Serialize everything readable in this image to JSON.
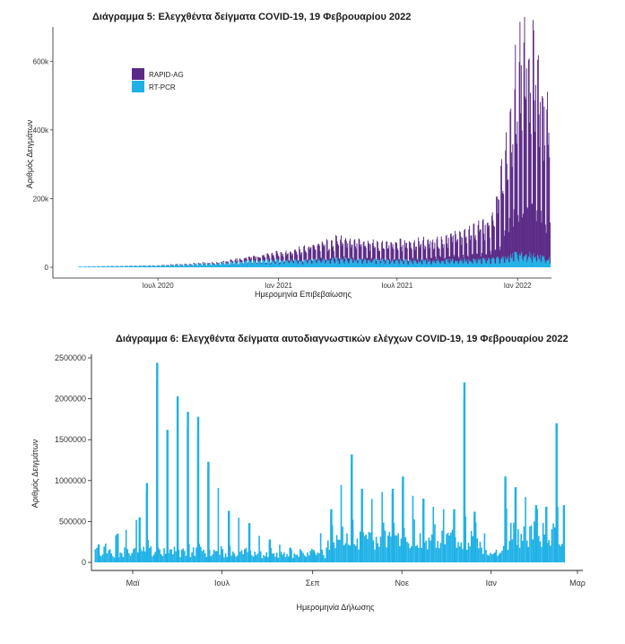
{
  "charts": [
    {
      "title": "Διάγραμμα 5: Ελεγχθέντα δείγματα COVID-19, 19 Φεβρουαρίου 2022",
      "xlabel": "Ημερομηνία Επιβεβαίωσης",
      "ylabel": "Αριθμός Δειγμάτων",
      "ytick_labels": [
        "0",
        "200k",
        "400k",
        "600k"
      ],
      "xtick_labels": [
        "Ιουλ 2020",
        "Ιαν 2021",
        "Ιουλ 2021",
        "Ιαν 2022"
      ],
      "legend": [
        "RAPID-AG",
        "RT-PCR"
      ],
      "colors": {
        "rapid": "#5b2a86",
        "pcr": "#1fb1e6"
      }
    },
    {
      "title": "Διάγραμμα 6: Ελεγχθέντα δείγματα αυτοδιαγνωστικών ελέγχων COVID-19, 19 Φεβρουαρίου 2022",
      "xlabel": "Ημερομηνία Δήλωσης",
      "ylabel": "Αριθμός Δειγμάτων",
      "ytick_labels": [
        "0",
        "500000",
        "1000000",
        "1500000",
        "2000000",
        "2500000"
      ],
      "xtick_labels": [
        "Μαϊ",
        "Ιουλ",
        "Σεπ",
        "Νοε",
        "Ιαν",
        "Μαρ"
      ],
      "colors": {
        "self": "#1fb1e6"
      }
    }
  ],
  "chart_data": [
    {
      "type": "bar",
      "stacked": true,
      "x_range": [
        "2020-03-01",
        "2022-02-19"
      ],
      "ylim": [
        0,
        700000
      ],
      "legend_position": "top-left",
      "grid": false,
      "weekly_profile": [
        {
          "date": "2020-03-01",
          "pcr": 2000,
          "rapid": 0
        },
        {
          "date": "2020-07-01",
          "pcr": 5000,
          "rapid": 1000
        },
        {
          "date": "2020-10-01",
          "pcr": 12000,
          "rapid": 3000
        },
        {
          "date": "2020-12-01",
          "pcr": 20000,
          "rapid": 12000
        },
        {
          "date": "2021-01-15",
          "pcr": 22000,
          "rapid": 25000
        },
        {
          "date": "2021-04-01",
          "pcr": 25000,
          "rapid": 55000
        },
        {
          "date": "2021-06-15",
          "pcr": 22000,
          "rapid": 45000
        },
        {
          "date": "2021-08-15",
          "pcr": 20000,
          "rapid": 55000
        },
        {
          "date": "2021-10-15",
          "pcr": 22000,
          "rapid": 80000
        },
        {
          "date": "2021-11-25",
          "pcr": 25000,
          "rapid": 110000
        },
        {
          "date": "2021-12-15",
          "pcr": 30000,
          "rapid": 330000
        },
        {
          "date": "2022-01-05",
          "pcr": 45000,
          "rapid": 580000
        },
        {
          "date": "2022-01-25",
          "pcr": 35000,
          "rapid": 550000
        },
        {
          "date": "2022-02-19",
          "pcr": 25000,
          "rapid": 380000
        }
      ]
    },
    {
      "type": "bar",
      "x_range": [
        "2021-04-05",
        "2022-02-19"
      ],
      "ylim": [
        0,
        2500000
      ],
      "grid": false,
      "peaks": [
        {
          "date": "2021-04-07",
          "value": 220000
        },
        {
          "date": "2021-04-20",
          "value": 350000
        },
        {
          "date": "2021-05-05",
          "value": 550000
        },
        {
          "date": "2021-05-10",
          "value": 970000
        },
        {
          "date": "2021-05-17",
          "value": 2440000
        },
        {
          "date": "2021-05-24",
          "value": 1620000
        },
        {
          "date": "2021-05-31",
          "value": 2030000
        },
        {
          "date": "2021-06-07",
          "value": 1840000
        },
        {
          "date": "2021-06-14",
          "value": 1780000
        },
        {
          "date": "2021-06-21",
          "value": 1230000
        },
        {
          "date": "2021-07-05",
          "value": 630000
        },
        {
          "date": "2021-07-19",
          "value": 480000
        },
        {
          "date": "2021-08-02",
          "value": 280000
        },
        {
          "date": "2021-08-16",
          "value": 180000
        },
        {
          "date": "2021-09-01",
          "value": 150000
        },
        {
          "date": "2021-09-13",
          "value": 650000
        },
        {
          "date": "2021-09-27",
          "value": 1320000
        },
        {
          "date": "2021-10-04",
          "value": 900000
        },
        {
          "date": "2021-10-25",
          "value": 900000
        },
        {
          "date": "2021-11-01",
          "value": 1050000
        },
        {
          "date": "2021-11-15",
          "value": 780000
        },
        {
          "date": "2021-12-06",
          "value": 650000
        },
        {
          "date": "2021-12-13",
          "value": 2200000
        },
        {
          "date": "2021-12-20",
          "value": 620000
        },
        {
          "date": "2022-01-03",
          "value": 120000
        },
        {
          "date": "2022-01-10",
          "value": 1050000
        },
        {
          "date": "2022-01-17",
          "value": 920000
        },
        {
          "date": "2022-01-31",
          "value": 700000
        },
        {
          "date": "2022-02-07",
          "value": 680000
        },
        {
          "date": "2022-02-14",
          "value": 1700000
        },
        {
          "date": "2022-02-19",
          "value": 700000
        }
      ]
    }
  ]
}
